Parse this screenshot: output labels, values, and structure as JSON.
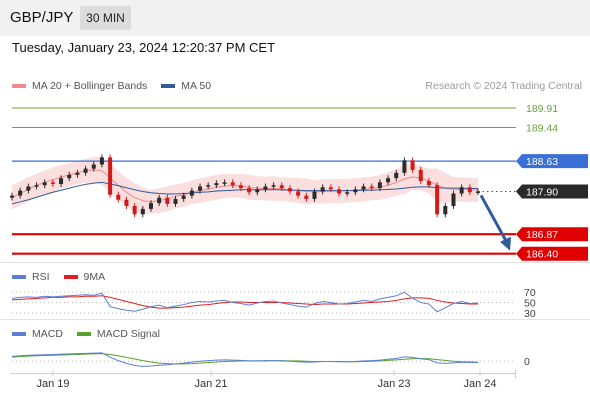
{
  "header": {
    "symbol": "GBP/JPY",
    "timeframe": "30 MIN"
  },
  "datetime": "Tuesday, January 23, 2024 12:20:37 PM CET",
  "credit": "Research © 2024 Trading Central",
  "legend_main": [
    {
      "label": "MA 20 + Bollinger Bands",
      "color": "#f08a8a"
    },
    {
      "label": "MA 50",
      "color": "#2f5a9e"
    }
  ],
  "legend_rsi": [
    {
      "label": "RSI",
      "color": "#5b7fd6"
    },
    {
      "label": "9MA",
      "color": "#e02020"
    }
  ],
  "legend_macd": [
    {
      "label": "MACD",
      "color": "#5b7fd6"
    },
    {
      "label": "MACD Signal",
      "color": "#5aa02c"
    }
  ],
  "colors": {
    "resistance": "#6aa13a",
    "pivot": "#3a6fd8",
    "support": "#e00000",
    "last": "#2a2a2a",
    "bull": "#2b2b2b",
    "bear": "#d11a1a",
    "band": "#fbdede",
    "arrow": "#2f5a9e"
  },
  "chart_data": {
    "type": "line",
    "title": "GBP/JPY",
    "x_ticks": [
      "Jan 19",
      "Jan 21",
      "Jan 23",
      "Jan 24"
    ],
    "ylim": [
      186.2,
      190.2
    ],
    "levels": [
      {
        "value": 189.91,
        "label": "189.91",
        "kind": "resistance"
      },
      {
        "value": 189.44,
        "label": "189.44",
        "kind": "resistance"
      },
      {
        "value": 188.63,
        "label": "188.63",
        "kind": "pivot"
      },
      {
        "value": 187.9,
        "label": "187.90",
        "kind": "last"
      },
      {
        "value": 186.87,
        "label": "186.87",
        "kind": "support"
      },
      {
        "value": 186.4,
        "label": "186.40",
        "kind": "support"
      }
    ],
    "price_series": [
      187.8,
      187.92,
      188.02,
      188.05,
      188.12,
      188.08,
      188.22,
      188.3,
      188.35,
      188.45,
      188.55,
      188.72,
      187.82,
      187.7,
      187.55,
      187.35,
      187.48,
      187.62,
      187.75,
      187.6,
      187.72,
      187.8,
      187.92,
      188.02,
      188.05,
      188.1,
      188.12,
      188.05,
      187.98,
      187.88,
      187.95,
      188.02,
      188.05,
      187.98,
      187.9,
      187.8,
      187.72,
      187.9,
      188.0,
      187.95,
      187.85,
      187.88,
      187.95,
      188.02,
      187.98,
      188.12,
      188.22,
      188.35,
      188.65,
      188.42,
      188.15,
      188.05,
      187.35,
      187.55,
      187.85,
      188.0,
      187.88,
      187.9
    ],
    "ma20_series": [
      187.75,
      187.85,
      187.95,
      188.05,
      188.12,
      188.18,
      188.25,
      188.3,
      188.35,
      188.4,
      188.42,
      188.4,
      188.22,
      188.05,
      187.88,
      187.75,
      187.68,
      187.65,
      187.68,
      187.72,
      187.78,
      187.82,
      187.88,
      187.92,
      187.96,
      188.0,
      188.03,
      188.04,
      188.03,
      188.0,
      187.98,
      187.97,
      187.97,
      187.96,
      187.94,
      187.92,
      187.9,
      187.89,
      187.9,
      187.91,
      187.91,
      187.92,
      187.93,
      187.95,
      187.97,
      188.0,
      188.05,
      188.12,
      188.2,
      188.25,
      188.22,
      188.15,
      188.05,
      187.98,
      187.95,
      187.95,
      187.94,
      187.93
    ],
    "ma50_series": [
      187.6,
      187.65,
      187.7,
      187.76,
      187.82,
      187.88,
      187.93,
      187.98,
      188.03,
      188.07,
      188.1,
      188.12,
      188.08,
      188.04,
      187.99,
      187.94,
      187.9,
      187.87,
      187.85,
      187.84,
      187.84,
      187.85,
      187.86,
      187.88,
      187.89,
      187.91,
      187.92,
      187.93,
      187.94,
      187.94,
      187.94,
      187.94,
      187.94,
      187.94,
      187.93,
      187.93,
      187.92,
      187.92,
      187.92,
      187.92,
      187.92,
      187.92,
      187.92,
      187.93,
      187.93,
      187.94,
      187.95,
      187.96,
      187.98,
      188.0,
      188.01,
      188.01,
      187.99,
      187.98,
      187.98,
      187.98,
      187.97,
      187.97
    ],
    "projection": {
      "from": 187.9,
      "to": 186.4
    },
    "rsi": {
      "ticks": [
        70,
        50,
        30
      ],
      "ylim": [
        20,
        80
      ],
      "values": [
        58,
        60,
        61,
        60,
        62,
        61,
        62,
        63,
        64,
        65,
        64,
        68,
        42,
        38,
        35,
        33,
        37,
        42,
        45,
        40,
        43,
        46,
        50,
        52,
        51,
        53,
        54,
        50,
        48,
        45,
        49,
        52,
        53,
        49,
        46,
        43,
        41,
        48,
        52,
        50,
        47,
        48,
        51,
        54,
        52,
        57,
        60,
        63,
        70,
        58,
        50,
        47,
        32,
        40,
        48,
        52,
        48,
        49
      ],
      "ma_values": [
        55,
        56,
        57,
        58,
        59,
        60,
        60,
        61,
        61,
        62,
        62,
        63,
        60,
        56,
        52,
        48,
        44,
        41,
        39,
        39,
        40,
        41,
        43,
        45,
        46,
        48,
        50,
        51,
        51,
        50,
        50,
        50,
        50,
        50,
        49,
        48,
        47,
        46,
        47,
        47,
        47,
        47,
        48,
        49,
        50,
        51,
        52,
        54,
        57,
        59,
        59,
        58,
        54,
        51,
        49,
        48,
        47,
        47
      ]
    },
    "macd": {
      "ticks": [
        0
      ],
      "ylim": [
        -0.4,
        0.6
      ],
      "macd_values": [
        0.18,
        0.2,
        0.22,
        0.23,
        0.24,
        0.25,
        0.26,
        0.27,
        0.28,
        0.29,
        0.3,
        0.31,
        0.15,
        0.02,
        -0.08,
        -0.16,
        -0.19,
        -0.18,
        -0.15,
        -0.13,
        -0.1,
        -0.07,
        -0.03,
        0.0,
        0.02,
        0.04,
        0.05,
        0.04,
        0.03,
        0.01,
        0.01,
        0.02,
        0.02,
        0.01,
        0.0,
        -0.02,
        -0.04,
        -0.03,
        -0.01,
        -0.01,
        -0.02,
        -0.02,
        -0.01,
        0.01,
        0.02,
        0.04,
        0.07,
        0.1,
        0.16,
        0.14,
        0.09,
        0.06,
        -0.06,
        -0.08,
        -0.06,
        -0.04,
        -0.05,
        -0.05
      ],
      "signal_values": [
        0.15,
        0.17,
        0.19,
        0.2,
        0.21,
        0.22,
        0.23,
        0.24,
        0.25,
        0.26,
        0.27,
        0.28,
        0.25,
        0.2,
        0.14,
        0.08,
        0.02,
        -0.03,
        -0.07,
        -0.09,
        -0.1,
        -0.1,
        -0.09,
        -0.07,
        -0.05,
        -0.03,
        -0.01,
        0.0,
        0.01,
        0.01,
        0.01,
        0.01,
        0.02,
        0.02,
        0.01,
        0.01,
        0.0,
        -0.01,
        -0.01,
        -0.01,
        -0.01,
        -0.02,
        -0.02,
        -0.01,
        0.0,
        0.01,
        0.03,
        0.05,
        0.07,
        0.09,
        0.1,
        0.09,
        0.06,
        0.03,
        0.0,
        -0.02,
        -0.03,
        -0.04
      ]
    }
  }
}
